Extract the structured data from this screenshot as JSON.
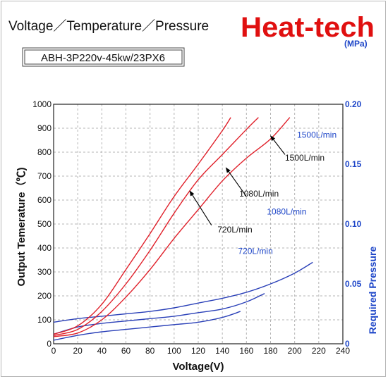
{
  "header": {
    "title": "Voltage／Temperature／Pressure",
    "brand": "Heat-tech",
    "model": "ABH-3P220v-45kw/23PX6"
  },
  "colors": {
    "temperature": "#e0202a",
    "pressure": "#2a40b8",
    "pressure_axis": "#1e46c8",
    "brand": "#e01010",
    "grid": "#b4b4b4"
  },
  "chart_data": {
    "type": "line",
    "xlabel": "Voltage(V)",
    "ylabel": "Output Temerature（℃)",
    "y2label": "Required Pressure",
    "y2unit": "(MPa)",
    "xlim": [
      0,
      240
    ],
    "ylim": [
      0,
      1000
    ],
    "y2lim": [
      0,
      0.2
    ],
    "grid": true,
    "x_ticks": [
      "0",
      "20",
      "40",
      "60",
      "80",
      "100",
      "120",
      "140",
      "160",
      "180",
      "200",
      "220",
      "240"
    ],
    "y_ticks": [
      "0",
      "100",
      "200",
      "300",
      "400",
      "500",
      "600",
      "700",
      "800",
      "900",
      "1000"
    ],
    "y2_ticks": [
      "0",
      "0.05",
      "0.10",
      "0.15",
      "0.20"
    ],
    "temperature_series": [
      {
        "label": "1500L/min",
        "points": [
          [
            0,
            30
          ],
          [
            20,
            45
          ],
          [
            40,
            100
          ],
          [
            60,
            195
          ],
          [
            80,
            310
          ],
          [
            100,
            440
          ],
          [
            120,
            560
          ],
          [
            140,
            680
          ],
          [
            160,
            775
          ],
          [
            180,
            855
          ],
          [
            196,
            945
          ]
        ],
        "arrow_from": [
          192,
          790
        ],
        "arrow_to": [
          180,
          868
        ],
        "label_at": [
          192,
          765
        ]
      },
      {
        "label": "1080L/min",
        "points": [
          [
            0,
            35
          ],
          [
            20,
            60
          ],
          [
            40,
            135
          ],
          [
            60,
            250
          ],
          [
            80,
            390
          ],
          [
            100,
            545
          ],
          [
            120,
            685
          ],
          [
            140,
            790
          ],
          [
            160,
            895
          ],
          [
            170,
            945
          ]
        ],
        "arrow_from": [
          160,
          615
        ],
        "arrow_to": [
          143,
          735
        ],
        "label_at": [
          154,
          615
        ]
      },
      {
        "label": "720L/min",
        "points": [
          [
            0,
            40
          ],
          [
            20,
            75
          ],
          [
            40,
            165
          ],
          [
            60,
            310
          ],
          [
            80,
            460
          ],
          [
            100,
            615
          ],
          [
            120,
            750
          ],
          [
            140,
            890
          ],
          [
            147,
            945
          ]
        ],
        "arrow_from": [
          131,
          495
        ],
        "arrow_to": [
          113,
          638
        ],
        "label_at": [
          136,
          465
        ]
      }
    ],
    "pressure_series": [
      {
        "label": "1500L/min",
        "points": [
          [
            0,
            0.018
          ],
          [
            20,
            0.021
          ],
          [
            40,
            0.023
          ],
          [
            60,
            0.025
          ],
          [
            80,
            0.027
          ],
          [
            100,
            0.03
          ],
          [
            120,
            0.034
          ],
          [
            140,
            0.038
          ],
          [
            160,
            0.043
          ],
          [
            180,
            0.05
          ],
          [
            200,
            0.059
          ],
          [
            215,
            0.068
          ]
        ],
        "label_at": [
          202,
          0.172
        ]
      },
      {
        "label": "1080L/min",
        "points": [
          [
            0,
            0.008
          ],
          [
            20,
            0.014
          ],
          [
            40,
            0.017
          ],
          [
            60,
            0.019
          ],
          [
            80,
            0.021
          ],
          [
            100,
            0.023
          ],
          [
            120,
            0.026
          ],
          [
            140,
            0.029
          ],
          [
            160,
            0.035
          ],
          [
            175,
            0.042
          ]
        ],
        "label_at": [
          177,
          0.108
        ]
      },
      {
        "label": "720L/min",
        "points": [
          [
            0,
            0.003
          ],
          [
            20,
            0.007
          ],
          [
            40,
            0.01
          ],
          [
            60,
            0.012
          ],
          [
            80,
            0.014
          ],
          [
            100,
            0.016
          ],
          [
            120,
            0.018
          ],
          [
            140,
            0.022
          ],
          [
            155,
            0.027
          ]
        ],
        "label_at": [
          153,
          0.075
        ]
      }
    ]
  }
}
